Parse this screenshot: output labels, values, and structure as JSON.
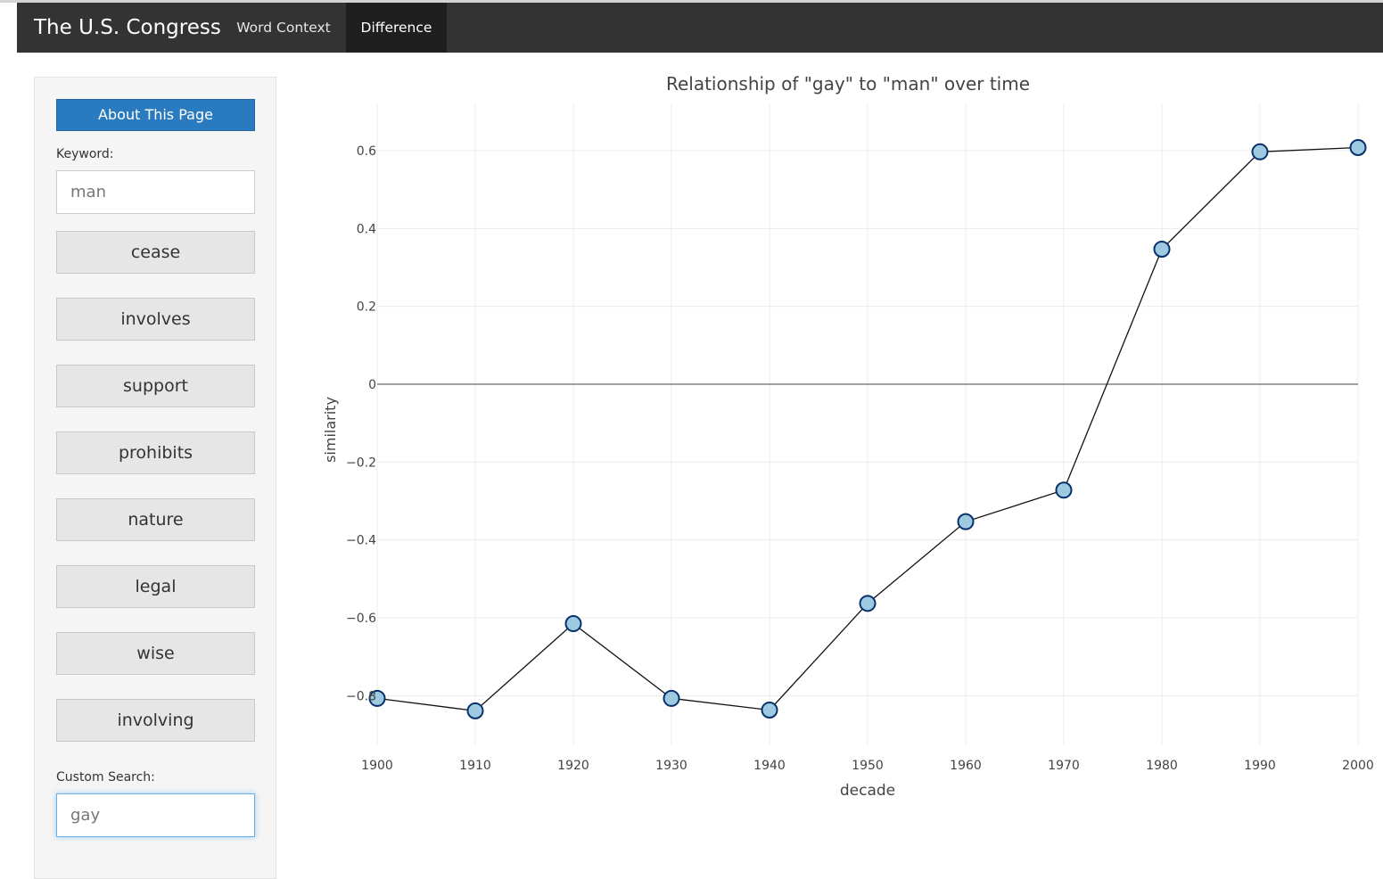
{
  "navbar": {
    "brand": "The U.S. Congress",
    "tabs": [
      {
        "label": "Word Context",
        "active": false
      },
      {
        "label": "Difference",
        "active": true
      }
    ]
  },
  "sidebar": {
    "about_label": "About This Page",
    "keyword_label": "Keyword:",
    "keyword_value": "man",
    "words": [
      "cease",
      "involves",
      "support",
      "prohibits",
      "nature",
      "legal",
      "wise",
      "involving"
    ],
    "custom_label": "Custom Search:",
    "custom_value": "gay"
  },
  "colors": {
    "navbar": "#333333",
    "accent": "#2a7abf",
    "marker_fill": "#9ecae1",
    "marker_stroke": "#08306b"
  },
  "chart_data": {
    "type": "line",
    "title": "Relationship of \"gay\" to \"man\" over time",
    "xlabel": "decade",
    "ylabel": "similarity",
    "x": [
      1900,
      1910,
      1920,
      1930,
      1940,
      1950,
      1960,
      1970,
      1980,
      1990,
      2000
    ],
    "series": [
      {
        "values": [
          -0.807,
          -0.839,
          -0.615,
          -0.807,
          -0.837,
          -0.563,
          -0.353,
          -0.272,
          0.347,
          0.597,
          0.608
        ]
      }
    ],
    "xlim": [
      1900,
      2000
    ],
    "ylim": [
      -0.9,
      0.7
    ],
    "xticks": [
      "1900",
      "1910",
      "1920",
      "1930",
      "1940",
      "1950",
      "1960",
      "1970",
      "1980",
      "1990",
      "2000"
    ],
    "yticks": [
      {
        "value": 0.6,
        "label": "0.6"
      },
      {
        "value": 0.4,
        "label": "0.4"
      },
      {
        "value": 0.2,
        "label": "0.2"
      },
      {
        "value": 0,
        "label": "0"
      },
      {
        "value": -0.2,
        "label": "−0.2"
      },
      {
        "value": -0.4,
        "label": "−0.4"
      },
      {
        "value": -0.6,
        "label": "−0.6"
      },
      {
        "value": -0.8,
        "label": "−0.8"
      }
    ],
    "grid": true,
    "legend": "none"
  }
}
